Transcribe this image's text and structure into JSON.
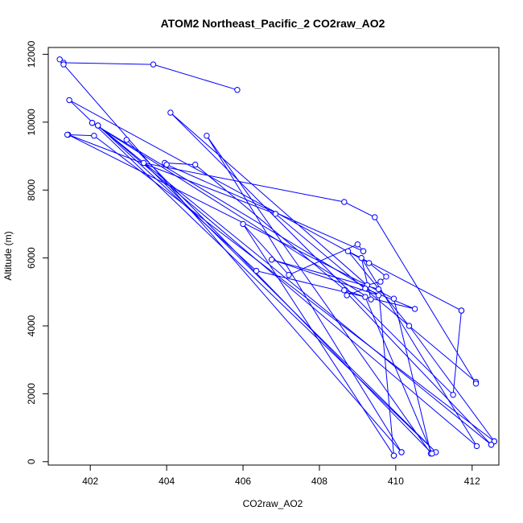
{
  "chart_data": {
    "type": "line",
    "title": "ATOM2 Northeast_Pacific_2 CO2raw_AO2",
    "xlabel": "CO2raw_AO2",
    "ylabel": "Altitude (m)",
    "xlim": [
      400.9,
      412.7
    ],
    "ylim": [
      -100,
      12200
    ],
    "x_ticks": [
      402,
      404,
      406,
      408,
      410,
      412
    ],
    "y_ticks": [
      0,
      2000,
      4000,
      6000,
      8000,
      10000,
      12000
    ],
    "grid": false,
    "line_color": "#0000ff",
    "marker": "open-circle",
    "series": [
      {
        "x": [
          405.85,
          403.65,
          401.3,
          401.2
        ],
        "y": [
          10950,
          11700,
          11750,
          11850
        ]
      },
      {
        "x": [
          401.3,
          410.15
        ],
        "y": [
          11700,
          280
        ]
      },
      {
        "x": [
          410.15,
          405.05,
          410.92,
          409.95,
          401.42,
          406.85,
          412.1
        ],
        "y": [
          280,
          9600,
          240,
          4800,
          9630,
          7300,
          2350
        ]
      },
      {
        "x": [
          412.1,
          409.45,
          408.65,
          403.4,
          411.05,
          401.45,
          409.3,
          409.75,
          409.6,
          409.25,
          404.1,
          411.5,
          411.72
        ],
        "y": [
          2300,
          7200,
          7650,
          8800,
          280,
          10650,
          5850,
          5450,
          5300,
          5200,
          10280,
          1970,
          4450
        ]
      },
      {
        "x": [
          411.72,
          408.75,
          410.35,
          412.58
        ],
        "y": [
          4450,
          6200,
          4000,
          600
        ]
      },
      {
        "x": [
          412.58,
          402.1,
          401.4
        ],
        "y": [
          600,
          9600,
          9630
        ]
      },
      {
        "x": [
          402.95,
          410.95,
          409.2,
          408.68,
          404.75,
          403.95,
          404.0,
          409.15
        ],
        "y": [
          9480,
          240,
          4850,
          5050,
          8750,
          8800,
          8750,
          6200
        ]
      },
      {
        "x": [
          409.15,
          409.0,
          407.2,
          406.0,
          409.95
        ],
        "y": [
          6200,
          6400,
          5500,
          7000,
          180
        ]
      },
      {
        "x": [
          409.95,
          409.55,
          406.75,
          409.55,
          402.05
        ],
        "y": [
          180,
          5080,
          5950,
          4900,
          9980
        ]
      },
      {
        "x": [
          402.05,
          409.35,
          409.1,
          412.12,
          402.2,
          412.5
        ],
        "y": [
          9980,
          4780,
          6000,
          460,
          9900,
          500
        ]
      },
      {
        "x": [
          412.5,
          408.65,
          408.72,
          409.2,
          410.5,
          406.35,
          402.2
        ],
        "y": [
          500,
          5050,
          4900,
          5100,
          4500,
          5620,
          9900
        ]
      }
    ]
  }
}
